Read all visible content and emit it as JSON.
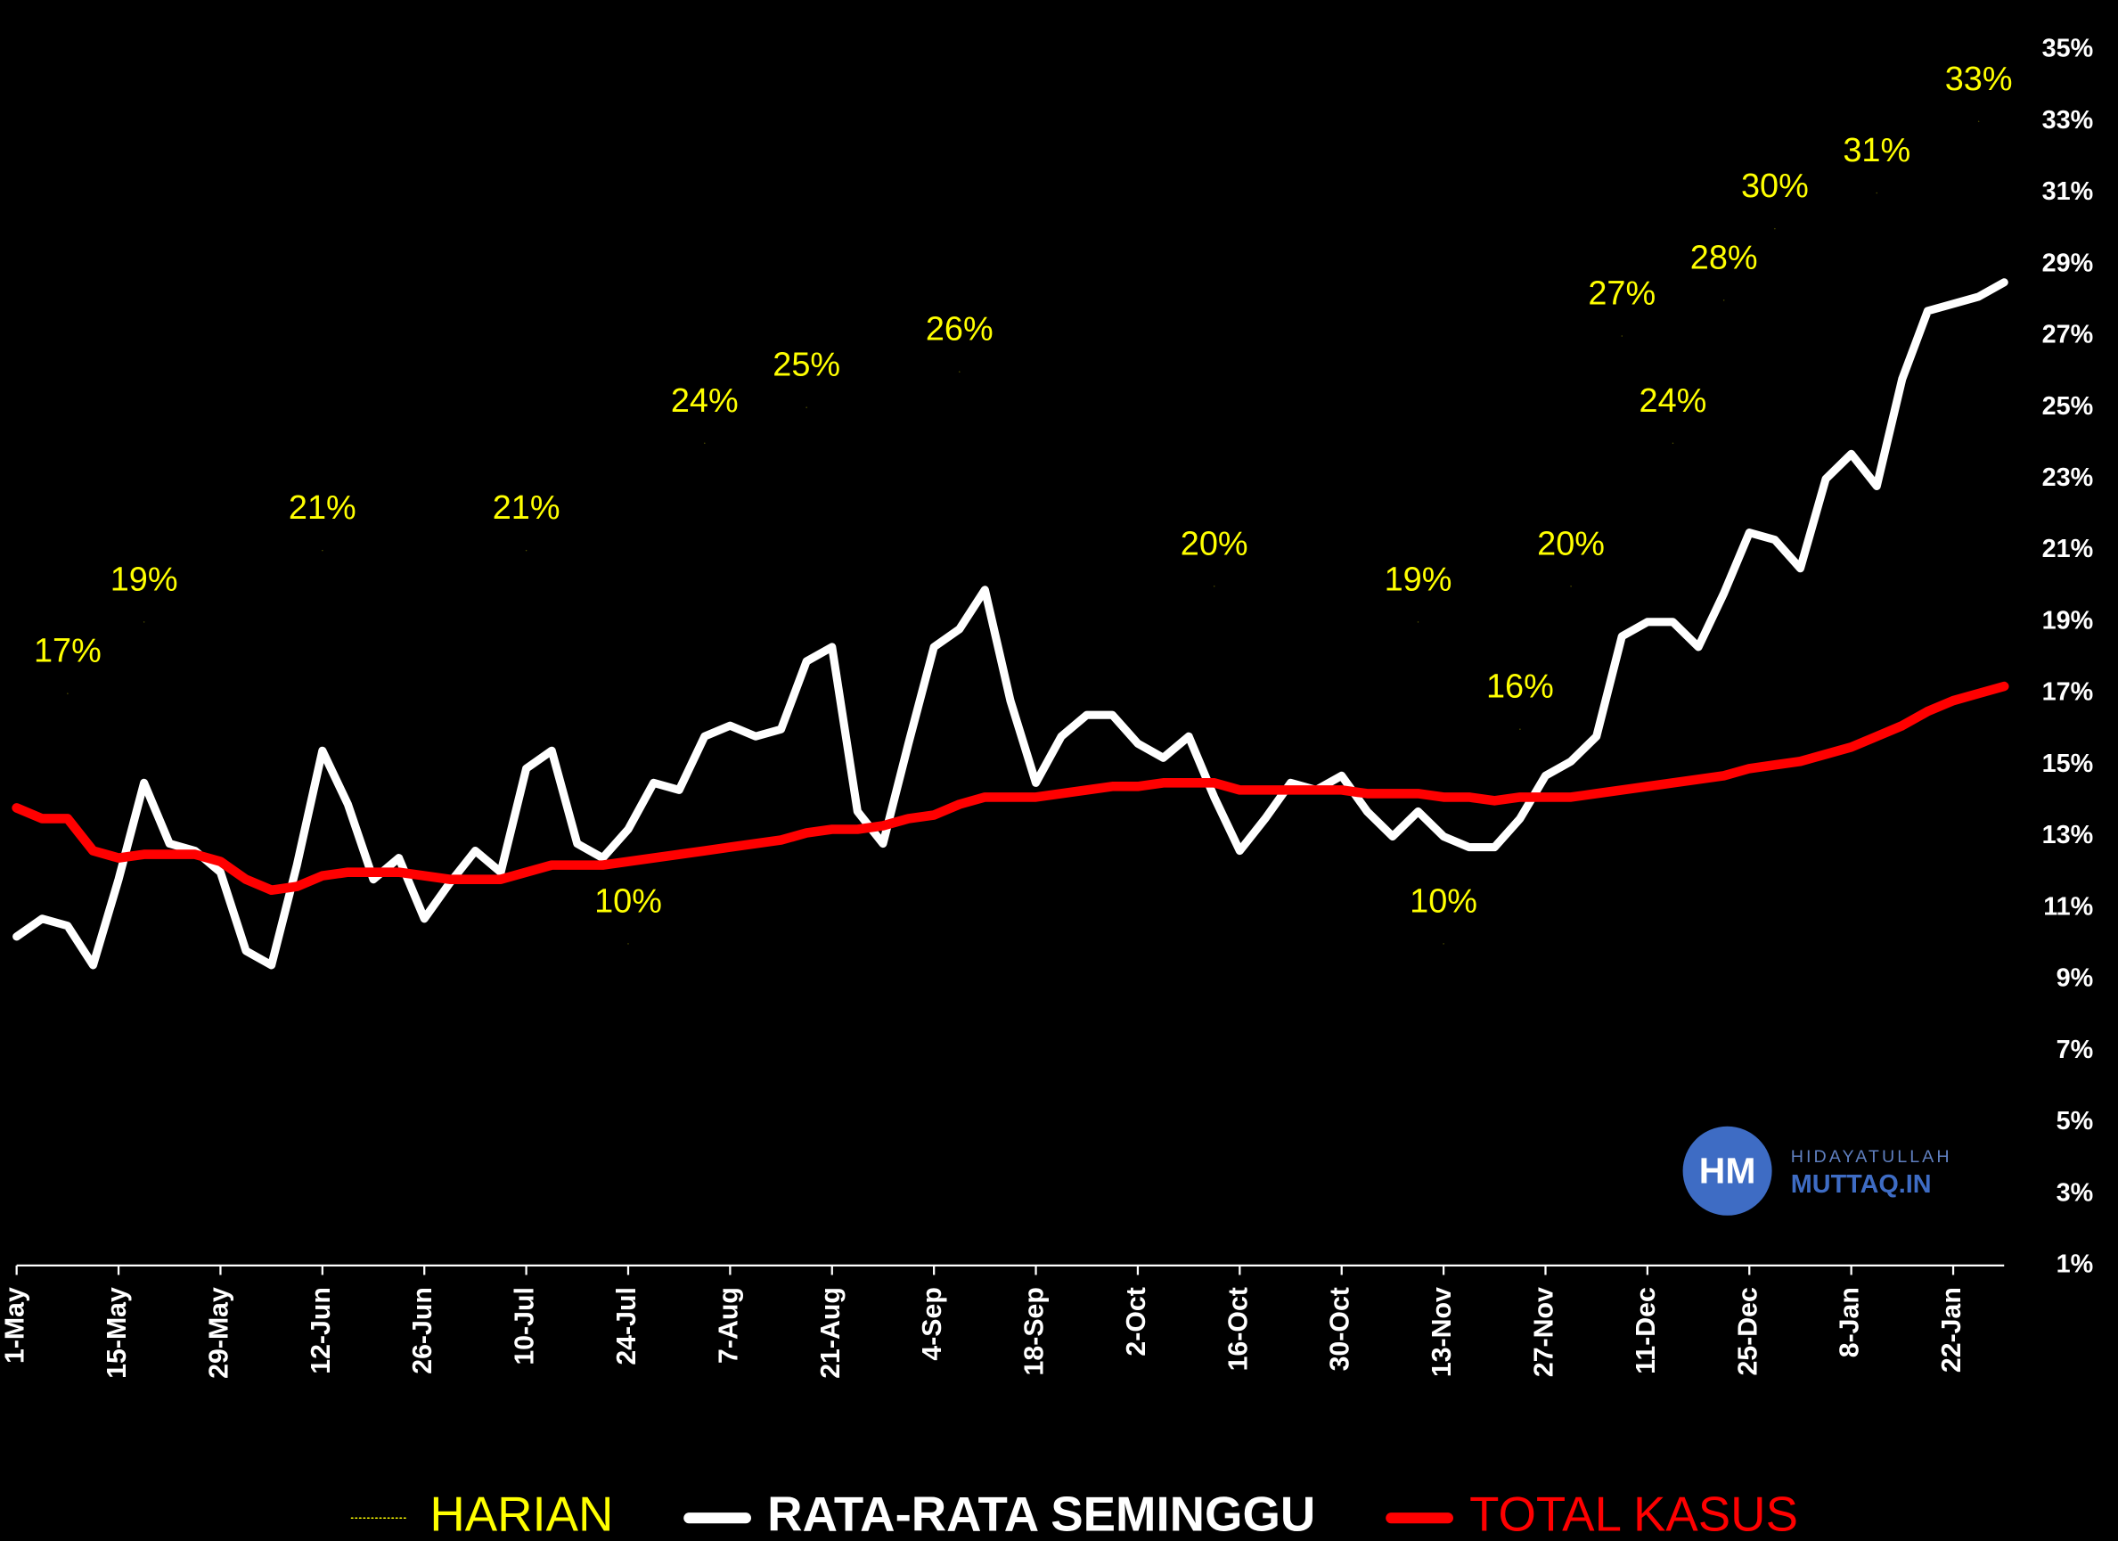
{
  "chart_data": {
    "type": "line",
    "categories": [
      "1-May",
      null,
      null,
      null,
      "15-May",
      null,
      null,
      null,
      "29-May",
      null,
      null,
      null,
      "12-Jun",
      null,
      null,
      null,
      "26-Jun",
      null,
      null,
      null,
      "10-Jul",
      null,
      null,
      null,
      "24-Jul",
      null,
      null,
      null,
      "7-Aug",
      null,
      null,
      null,
      "21-Aug",
      null,
      null,
      null,
      "4-Sep",
      null,
      null,
      null,
      "18-Sep",
      null,
      null,
      null,
      "2-Oct",
      null,
      null,
      null,
      "16-Oct",
      null,
      null,
      null,
      "30-Oct",
      null,
      null,
      null,
      "13-Nov",
      null,
      null,
      null,
      "27-Nov",
      null,
      null,
      null,
      "11-Dec",
      null,
      null,
      null,
      "25-Dec",
      null,
      null,
      null,
      "8-Jan",
      null,
      null,
      null,
      "22-Jan",
      null,
      null
    ],
    "series": [
      {
        "name": "HARIAN",
        "color": "#ffff00",
        "style": "labels",
        "values": [
          null,
          null,
          17,
          null,
          null,
          19,
          null,
          null,
          null,
          null,
          null,
          null,
          21,
          null,
          null,
          null,
          null,
          null,
          null,
          null,
          21,
          null,
          null,
          null,
          10,
          null,
          null,
          24,
          null,
          null,
          null,
          25,
          null,
          null,
          null,
          null,
          null,
          26,
          null,
          null,
          null,
          null,
          null,
          null,
          null,
          null,
          null,
          20,
          null,
          null,
          null,
          null,
          null,
          null,
          null,
          19,
          10,
          null,
          null,
          16,
          null,
          20,
          null,
          27,
          null,
          24,
          null,
          28,
          null,
          30,
          null,
          null,
          null,
          31,
          null,
          null,
          null,
          33,
          null
        ],
        "value_labels": [
          null,
          null,
          "17%",
          null,
          null,
          "19%",
          null,
          null,
          null,
          null,
          null,
          null,
          "21%",
          null,
          null,
          null,
          null,
          null,
          null,
          null,
          "21%",
          null,
          null,
          null,
          "10%",
          null,
          null,
          "24%",
          null,
          null,
          null,
          "25%",
          null,
          null,
          null,
          null,
          null,
          "26%",
          null,
          null,
          null,
          null,
          null,
          null,
          null,
          null,
          null,
          "20%",
          null,
          null,
          null,
          null,
          null,
          null,
          null,
          "19%",
          "10%",
          null,
          null,
          "16%",
          null,
          "20%",
          null,
          "27%",
          null,
          "24%",
          null,
          "28%",
          null,
          "30%",
          null,
          null,
          null,
          "31%",
          null,
          null,
          null,
          "33%",
          null
        ]
      },
      {
        "name": "RATA-RATA SEMINGGU",
        "color": "#ffffff",
        "style": "line",
        "values": [
          10.2,
          10.7,
          10.5,
          9.4,
          11.8,
          14.5,
          12.8,
          12.6,
          12,
          9.8,
          9.4,
          12.2,
          15.4,
          13.9,
          11.8,
          12.4,
          10.7,
          11.7,
          12.6,
          12,
          14.9,
          15.4,
          12.8,
          12.4,
          13.2,
          14.5,
          14.3,
          15.8,
          16.1,
          15.8,
          16,
          17.9,
          18.3,
          13.7,
          12.8,
          15.6,
          18.3,
          18.8,
          19.9,
          16.8,
          14.5,
          15.8,
          16.4,
          16.4,
          15.6,
          15.2,
          15.8,
          14.1,
          12.6,
          13.5,
          14.5,
          14.3,
          14.7,
          13.7,
          13,
          13.7,
          13,
          12.7,
          12.7,
          13.5,
          14.7,
          15.1,
          15.8,
          18.6,
          19,
          19,
          18.3,
          19.8,
          21.5,
          21.3,
          20.5,
          23,
          23.7,
          22.8,
          25.8,
          27.7,
          27.9,
          28.1,
          28.5
        ]
      },
      {
        "name": "TOTAL KASUS",
        "color": "#ff0000",
        "style": "line",
        "values": [
          13.8,
          13.5,
          13.5,
          12.6,
          12.4,
          12.5,
          12.5,
          12.5,
          12.3,
          11.8,
          11.5,
          11.6,
          11.9,
          12,
          12,
          12,
          11.9,
          11.8,
          11.8,
          11.8,
          12,
          12.2,
          12.2,
          12.2,
          12.3,
          12.4,
          12.5,
          12.6,
          12.7,
          12.8,
          12.9,
          13.1,
          13.2,
          13.2,
          13.3,
          13.5,
          13.6,
          13.9,
          14.1,
          14.1,
          14.1,
          14.2,
          14.3,
          14.4,
          14.4,
          14.5,
          14.5,
          14.5,
          14.3,
          14.3,
          14.3,
          14.3,
          14.3,
          14.2,
          14.2,
          14.2,
          14.1,
          14.1,
          14,
          14.1,
          14.1,
          14.1,
          14.2,
          14.3,
          14.4,
          14.5,
          14.6,
          14.7,
          14.9,
          15,
          15.1,
          15.3,
          15.5,
          15.8,
          16.1,
          16.5,
          16.8,
          17,
          17.2
        ]
      }
    ],
    "ylim": [
      1,
      35
    ],
    "yticks": [
      {
        "value": 1,
        "label": "1%"
      },
      {
        "value": 3,
        "label": "3%"
      },
      {
        "value": 5,
        "label": "5%"
      },
      {
        "value": 7,
        "label": "7%"
      },
      {
        "value": 9,
        "label": "9%"
      },
      {
        "value": 11,
        "label": "11%"
      },
      {
        "value": 13,
        "label": "13%"
      },
      {
        "value": 15,
        "label": "15%"
      },
      {
        "value": 17,
        "label": "17%"
      },
      {
        "value": 19,
        "label": "19%"
      },
      {
        "value": 21,
        "label": "21%"
      },
      {
        "value": 23,
        "label": "23%"
      },
      {
        "value": 25,
        "label": "25%"
      },
      {
        "value": 27,
        "label": "27%"
      },
      {
        "value": 29,
        "label": "29%"
      },
      {
        "value": 31,
        "label": "31%"
      },
      {
        "value": 33,
        "label": "33%"
      },
      {
        "value": 35,
        "label": "35%"
      }
    ],
    "yaxis_side": "right",
    "grid": false,
    "legend": "bottom",
    "watermark": {
      "initials": "HM",
      "line1": "HIDAYATULLAH",
      "line2": "MUTTAQ.IN"
    }
  }
}
